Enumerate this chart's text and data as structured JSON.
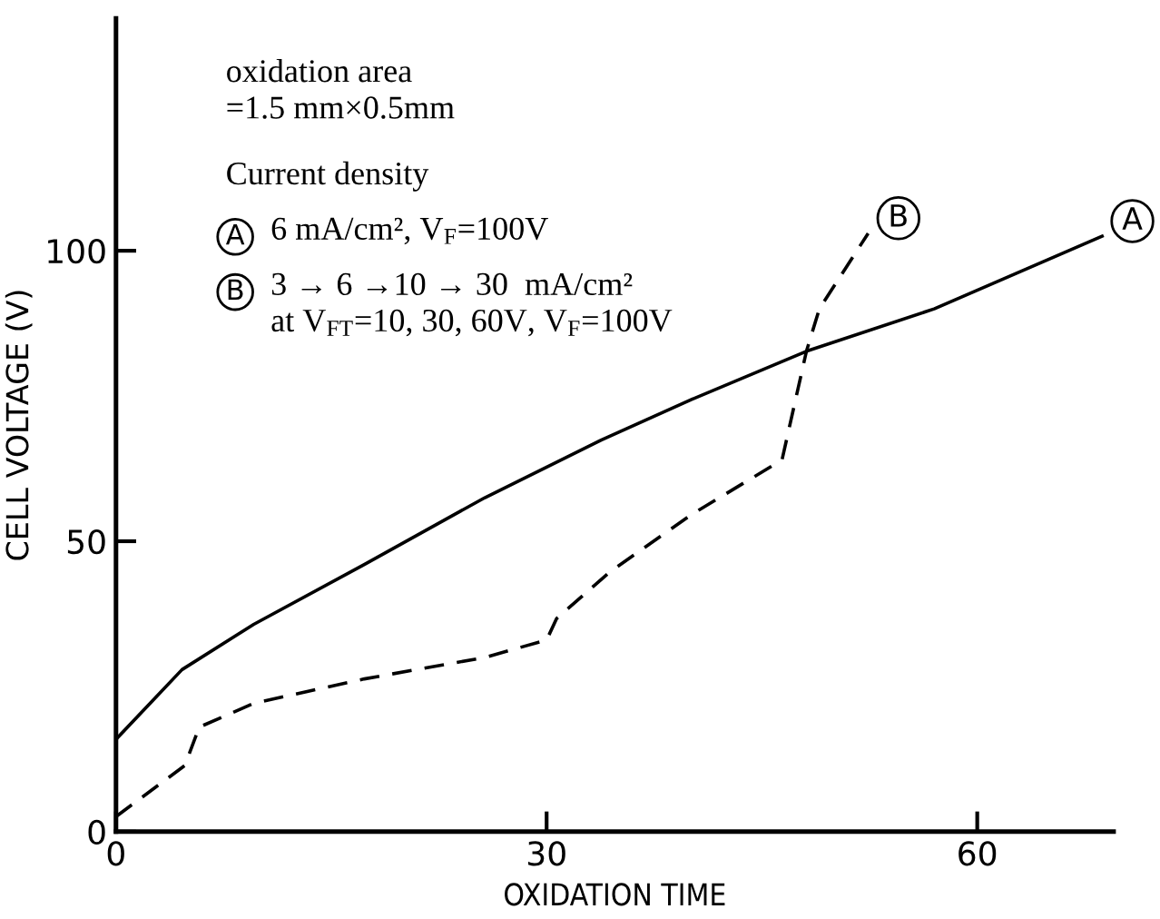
{
  "chart_data": {
    "type": "line",
    "xlabel": "OXIDATION TIME",
    "ylabel": "CELL VOLTAGE (V)",
    "xlim": [
      0,
      69.5
    ],
    "ylim": [
      0,
      140
    ],
    "xticks": [
      0,
      30,
      60
    ],
    "yticks": [
      0,
      50,
      100
    ],
    "grid": false,
    "legend": "top left",
    "marker": "none",
    "series": [
      {
        "name": "A",
        "color": "#000000",
        "line_style": "solid",
        "x": [
          0,
          4.6,
          9.6,
          17.3,
          25.7,
          33.8,
          40.1,
          48.1,
          57,
          68.7
        ],
        "values": [
          15.9,
          27.9,
          35.7,
          46,
          57.5,
          67.4,
          74.4,
          82.7,
          90,
          102.5
        ]
      },
      {
        "name": "B",
        "color": "#000000",
        "line_style": "dashed",
        "x": [
          0,
          4.8,
          5.8,
          9.6,
          17.3,
          25.7,
          30,
          30.7,
          34.4,
          40.1,
          46.4,
          48.1,
          49,
          52.4
        ],
        "values": [
          2.6,
          11.4,
          18,
          22.1,
          26.3,
          30,
          33,
          36.7,
          44.7,
          54.6,
          64,
          82.7,
          90,
          103
        ]
      }
    ],
    "annotations": [
      "oxidation area\n=1.5 mm×0.5mm",
      "Current density",
      "6 mA/cm², V$_{F}$=100V",
      "3 → 6 →10 → 30  mA/cm²\nat V$_{FT}$=10, 30, 60V, V$_{F}$=100V"
    ]
  }
}
